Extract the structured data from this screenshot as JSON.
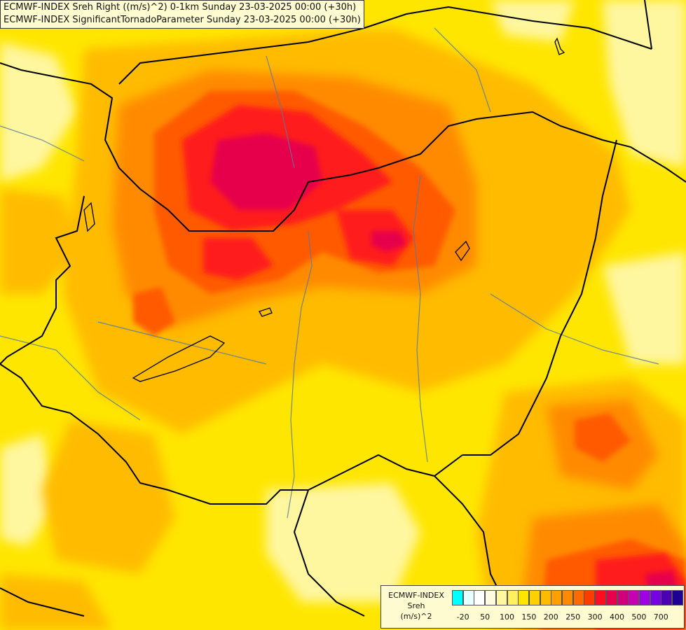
{
  "header": {
    "line1": "ECMWF-INDEX Sreh Right ((m/s)^2) 0-1km Sunday 23-03-2025 00:00 (+30h)",
    "line2": "ECMWF-INDEX SignificantTornadoParameter Sunday 23-03-2025 00:00 (+30h)"
  },
  "legend": {
    "model": "ECMWF-INDEX",
    "variable": "Sreh",
    "unit": "(m/s)^2",
    "colors": [
      "#00ffff",
      "#e6ffff",
      "#ffffff",
      "#fffbe0",
      "#fff6a0",
      "#fff060",
      "#ffe600",
      "#ffd000",
      "#ffbb00",
      "#ffa000",
      "#ff8a00",
      "#ff6a00",
      "#ff3c00",
      "#ff0c20",
      "#e6004c",
      "#d0007a",
      "#c800b4",
      "#a000e6",
      "#7800e6",
      "#4b00b4",
      "#1e0096"
    ],
    "ticks": [
      "-20",
      "50",
      "100",
      "150",
      "200",
      "250",
      "300",
      "400",
      "500",
      "700"
    ]
  },
  "map_colors": {
    "base": "#ffe600",
    "light": "#fff6a0",
    "orange": "#ffbb00",
    "dark_orange": "#ff8a00",
    "red_orange": "#ff5a00",
    "red": "#ff1c1c",
    "magenta": "#e6004c",
    "border": "#000000",
    "river": "#5a7a9a"
  }
}
